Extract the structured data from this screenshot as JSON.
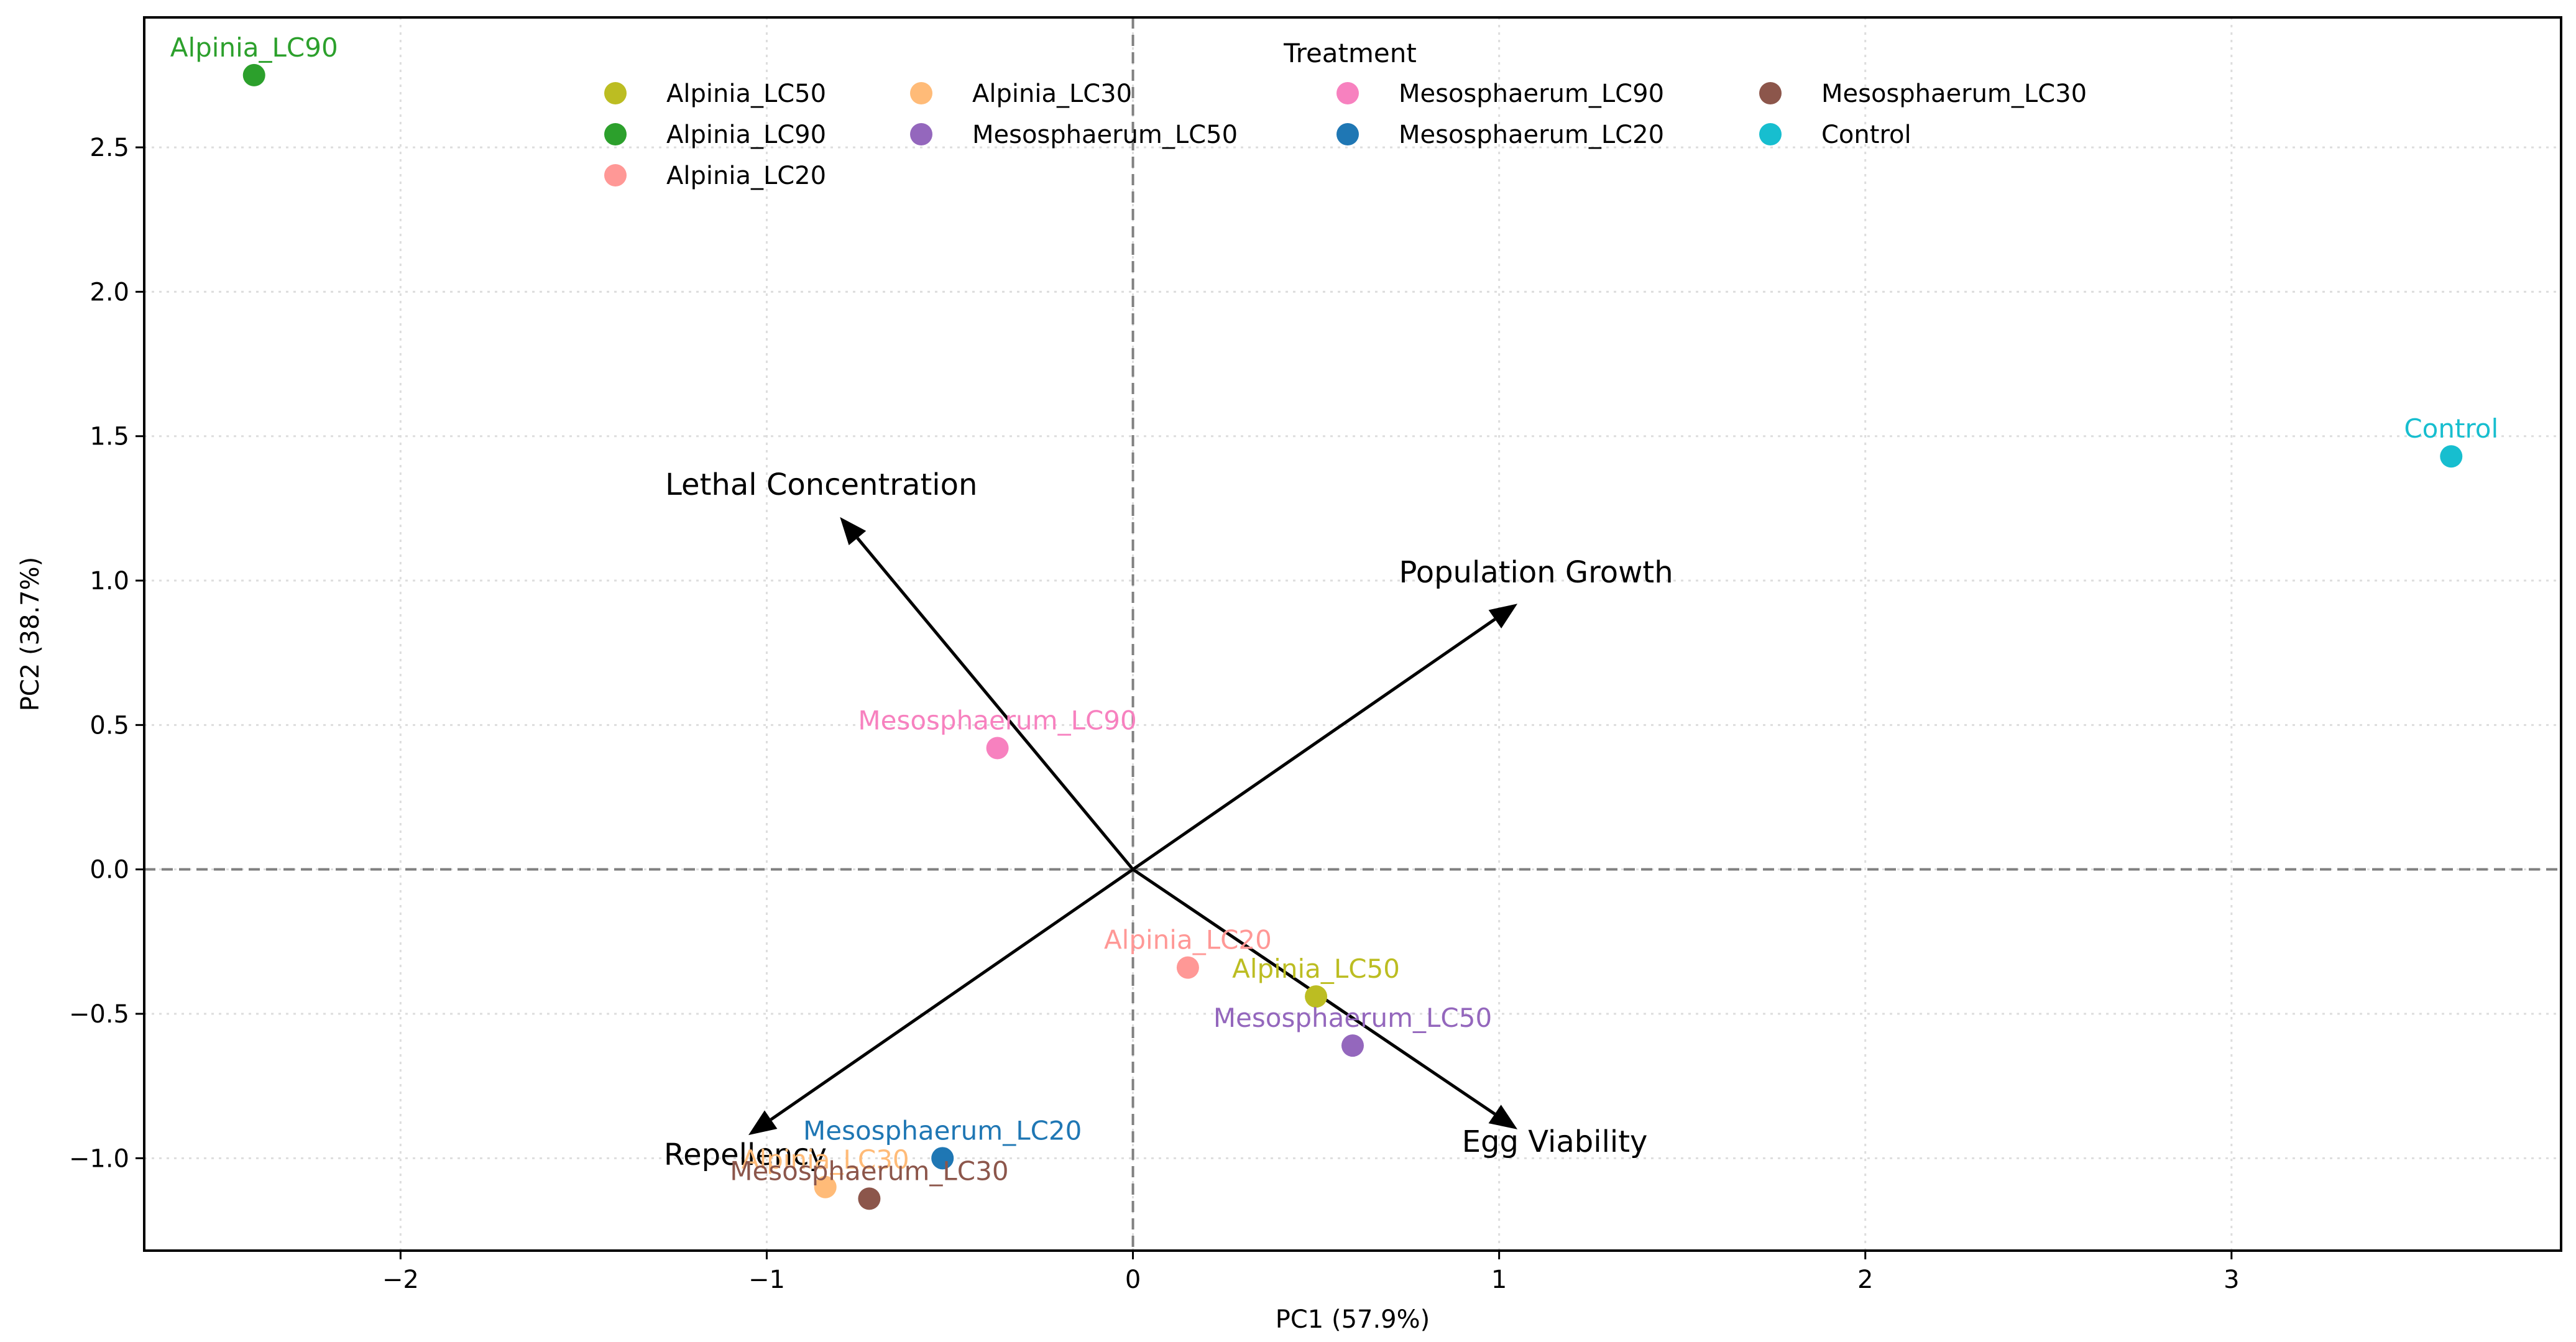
{
  "chart_data": {
    "type": "scatter",
    "title": "",
    "xlabel": "PC1 (57.9%)",
    "ylabel": "PC2 (38.7%)",
    "xlim": [
      -2.7,
      3.9
    ],
    "ylim": [
      -1.32,
      2.95
    ],
    "xticks": [
      -2,
      -1,
      0,
      1,
      2,
      3
    ],
    "yticks": [
      -1.0,
      -0.5,
      0.0,
      0.5,
      1.0,
      1.5,
      2.0,
      2.5
    ],
    "xtick_labels": [
      "−2",
      "−1",
      "0",
      "1",
      "2",
      "3"
    ],
    "ytick_labels": [
      "−1.0",
      "−0.5",
      "0.0",
      "0.5",
      "1.0",
      "1.5",
      "2.0",
      "2.5"
    ],
    "grid": true,
    "legend": {
      "title": "Treatment",
      "placement": "upper-center",
      "columns": 4
    },
    "points": [
      {
        "name": "Alpinia_LC50",
        "x": 0.5,
        "y": -0.44,
        "color": "#bcbd22"
      },
      {
        "name": "Alpinia_LC90",
        "x": -2.4,
        "y": 2.75,
        "color": "#2ca02c"
      },
      {
        "name": "Alpinia_LC20",
        "x": 0.15,
        "y": -0.34,
        "color": "#ff9896"
      },
      {
        "name": "Alpinia_LC30",
        "x": -0.84,
        "y": -1.1,
        "color": "#ffbb78"
      },
      {
        "name": "Mesosphaerum_LC50",
        "x": 0.6,
        "y": -0.61,
        "color": "#9467bd"
      },
      {
        "name": "Mesosphaerum_LC90",
        "x": -0.37,
        "y": 0.42,
        "color": "#f781bf"
      },
      {
        "name": "Mesosphaerum_LC20",
        "x": -0.52,
        "y": -1.0,
        "color": "#1f77b4"
      },
      {
        "name": "Mesosphaerum_LC30",
        "x": -0.72,
        "y": -1.14,
        "color": "#8c564b"
      },
      {
        "name": "Control",
        "x": 3.6,
        "y": 1.43,
        "color": "#17becf"
      }
    ],
    "loadings": [
      {
        "name": "Lethal Concentration",
        "x": -0.8,
        "y": 1.22
      },
      {
        "name": "Population Growth",
        "x": 1.05,
        "y": 0.92
      },
      {
        "name": "Repellency",
        "x": -1.05,
        "y": -0.92
      },
      {
        "name": "Egg Viability",
        "x": 1.05,
        "y": -0.9
      }
    ]
  }
}
